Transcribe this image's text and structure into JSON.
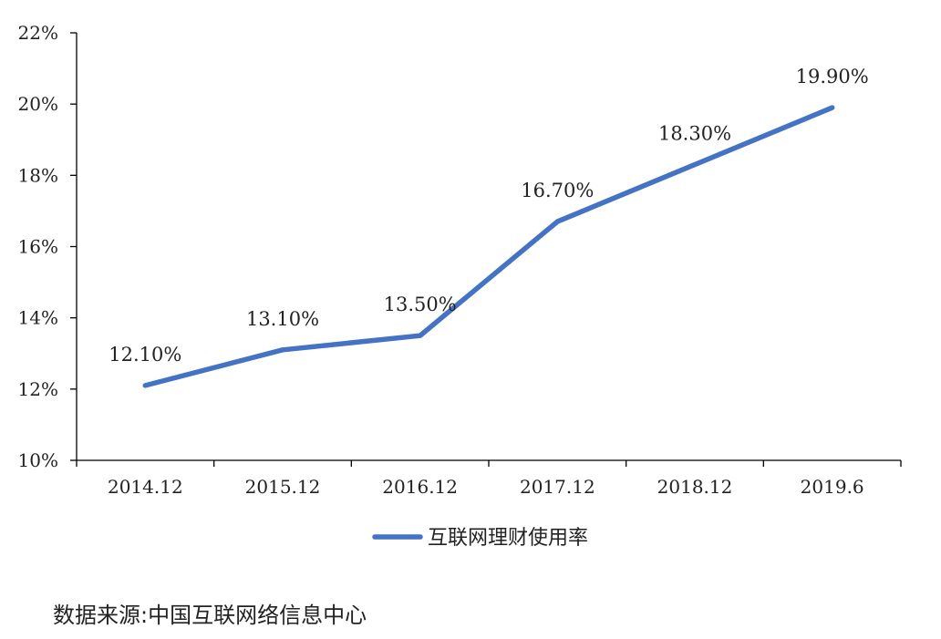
{
  "chart_data": {
    "type": "line",
    "categories": [
      "2014.12",
      "2015.12",
      "2016.12",
      "2017.12",
      "2018.12",
      "2019.6"
    ],
    "series": [
      {
        "name": "互联网理财使用率",
        "values": [
          12.1,
          13.1,
          13.5,
          16.7,
          18.3,
          19.9
        ],
        "data_labels": [
          "12.10%",
          "13.10%",
          "13.50%",
          "16.70%",
          "18.30%",
          "19.90%"
        ],
        "color": "#4472C4"
      }
    ],
    "ylim": [
      10,
      22
    ],
    "y_ticks": [
      10,
      12,
      14,
      16,
      18,
      20,
      22
    ],
    "y_tick_labels": [
      "10%",
      "12%",
      "14%",
      "16%",
      "18%",
      "20%",
      "22%"
    ],
    "grid": false,
    "legend": "bottom-center"
  },
  "source": "数据来源:中国互联网络信息中心"
}
